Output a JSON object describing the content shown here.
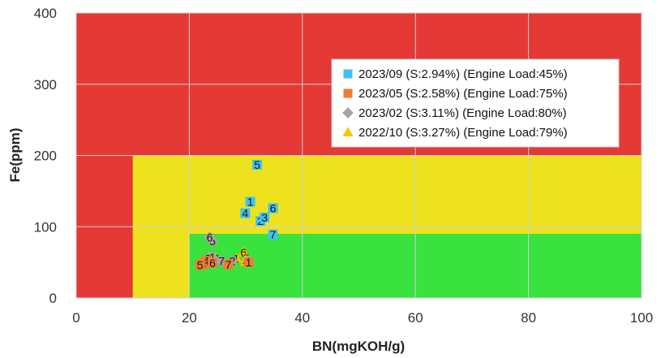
{
  "chart_data": {
    "type": "scatter",
    "xlabel": "BN(mgKOH/g)",
    "ylabel": "Fe(ppm)",
    "xlim": [
      0,
      100
    ],
    "ylim": [
      0,
      400
    ],
    "xticks": [
      "0",
      "20",
      "40",
      "60",
      "80",
      "100"
    ],
    "yticks": [
      "0",
      "100",
      "200",
      "300",
      "400"
    ],
    "grid": true,
    "legend_position": "top-right",
    "zones": [
      {
        "name": "red",
        "color": "#E53935",
        "x": [
          0,
          100
        ],
        "y": [
          0,
          400
        ]
      },
      {
        "name": "yellow",
        "color": "#EEE21F",
        "x": [
          10,
          100
        ],
        "y": [
          0,
          200
        ]
      },
      {
        "name": "green",
        "color": "#39E23F",
        "x": [
          20,
          100
        ],
        "y": [
          0,
          90
        ]
      }
    ],
    "series": [
      {
        "name": "2023/09 (S:2.94%) (Engine Load:45%)",
        "marker": "square",
        "color": "#3EC3EE",
        "points": [
          {
            "label": "1",
            "x": 30.8,
            "y": 135
          },
          {
            "label": "2",
            "x": 32.6,
            "y": 108
          },
          {
            "label": "3",
            "x": 33.3,
            "y": 113
          },
          {
            "label": "4",
            "x": 29.9,
            "y": 119
          },
          {
            "label": "5",
            "x": 32.0,
            "y": 187
          },
          {
            "label": "6",
            "x": 34.8,
            "y": 126
          },
          {
            "label": "7",
            "x": 34.8,
            "y": 89
          }
        ]
      },
      {
        "name": "2023/05 (S:2.58%) (Engine Load:75%)",
        "marker": "square",
        "color": "#EE7D31",
        "points": [
          {
            "label": "1",
            "x": 30.5,
            "y": 50
          },
          {
            "label": "2",
            "x": 22.4,
            "y": 48
          },
          {
            "label": "3",
            "x": 22.8,
            "y": 50
          },
          {
            "label": "4",
            "x": 23.0,
            "y": 52
          },
          {
            "label": "5",
            "x": 21.9,
            "y": 46
          },
          {
            "label": "6",
            "x": 24.1,
            "y": 49
          },
          {
            "label": "7",
            "x": 26.9,
            "y": 47
          }
        ]
      },
      {
        "name": "2023/02 (S:3.11%) (Engine Load:80%)",
        "marker": "diamond",
        "color": "#A5A5A5",
        "points": [
          {
            "label": "1",
            "x": 24.1,
            "y": 57
          },
          {
            "label": "2",
            "x": 27.6,
            "y": 52
          },
          {
            "label": "3",
            "x": 23.3,
            "y": 55
          },
          {
            "label": "4",
            "x": 30.5,
            "y": 52
          },
          {
            "label": "5",
            "x": 24.1,
            "y": 80
          },
          {
            "label": "6",
            "x": 23.6,
            "y": 85
          },
          {
            "label": "7",
            "x": 25.7,
            "y": 52
          }
        ]
      },
      {
        "name": "2022/10 (S:3.27%) (Engine Load:79%)",
        "marker": "triangle",
        "color": "#F7C600",
        "points": [
          {
            "label": "1",
            "x": 28.3,
            "y": 55
          },
          {
            "label": "2",
            "x": 24.7,
            "y": 56
          },
          {
            "label": "3",
            "x": 23.8,
            "y": 52
          },
          {
            "label": "4",
            "x": 30.0,
            "y": 51
          },
          {
            "label": "5",
            "x": 23.5,
            "y": 57
          },
          {
            "label": "6",
            "x": 29.6,
            "y": 64
          },
          {
            "label": "7",
            "x": 30.1,
            "y": 56
          }
        ]
      }
    ]
  }
}
